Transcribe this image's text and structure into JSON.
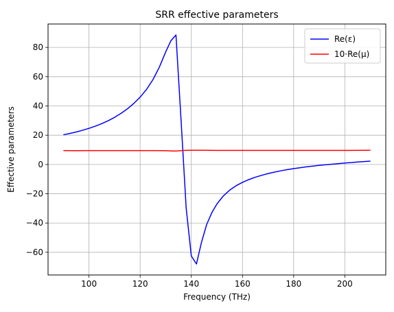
{
  "chart_data": {
    "type": "line",
    "title": "SRR effective parameters",
    "xlabel": "Frequency (THz)",
    "ylabel": "Effective parameters",
    "xlim": [
      84,
      216
    ],
    "ylim": [
      -75.5,
      96
    ],
    "xticks": [
      100,
      120,
      140,
      160,
      180,
      200
    ],
    "yticks": [
      -60,
      -40,
      -20,
      0,
      20,
      40,
      60,
      80
    ],
    "grid": true,
    "legend_position": "upper-right",
    "series": [
      {
        "name": "Re(ε)",
        "color": "#0000ff",
        "x": [
          90,
          92.5,
          95,
          97.5,
          100,
          102.5,
          105,
          107.5,
          110,
          112.5,
          115,
          117.5,
          120,
          122.5,
          125,
          127.5,
          130,
          132,
          134,
          136,
          138,
          140,
          142,
          144,
          146,
          148,
          150,
          152.5,
          155,
          157.5,
          160,
          162.5,
          165,
          167.5,
          170,
          172.5,
          175,
          177.5,
          180,
          182.5,
          185,
          187.5,
          190,
          192.5,
          195,
          197.5,
          200,
          202.5,
          205,
          207.5,
          210
        ],
        "y": [
          20.3,
          21.2,
          22.2,
          23.4,
          24.7,
          26.2,
          27.9,
          29.9,
          32.2,
          34.9,
          38.0,
          41.7,
          46.0,
          51.3,
          58.0,
          66.5,
          77.0,
          84.5,
          88.5,
          30.0,
          -30.0,
          -62.5,
          -68.0,
          -53.0,
          -41.0,
          -33.0,
          -27.0,
          -21.5,
          -17.5,
          -14.5,
          -12.2,
          -10.3,
          -8.7,
          -7.4,
          -6.2,
          -5.2,
          -4.3,
          -3.5,
          -2.8,
          -2.2,
          -1.6,
          -1.1,
          -0.6,
          -0.2,
          0.2,
          0.6,
          1.0,
          1.3,
          1.7,
          2.0,
          2.3
        ]
      },
      {
        "name": "10·Re(μ)",
        "color": "#ff0000",
        "x": [
          90,
          95,
          100,
          105,
          110,
          115,
          120,
          125,
          130,
          133,
          135,
          137,
          140,
          145,
          150,
          160,
          170,
          180,
          190,
          200,
          210
        ],
        "y": [
          9.5,
          9.4,
          9.5,
          9.5,
          9.5,
          9.5,
          9.5,
          9.5,
          9.4,
          9.2,
          9.3,
          9.6,
          9.7,
          9.7,
          9.6,
          9.6,
          9.6,
          9.6,
          9.6,
          9.6,
          9.7
        ]
      }
    ]
  }
}
